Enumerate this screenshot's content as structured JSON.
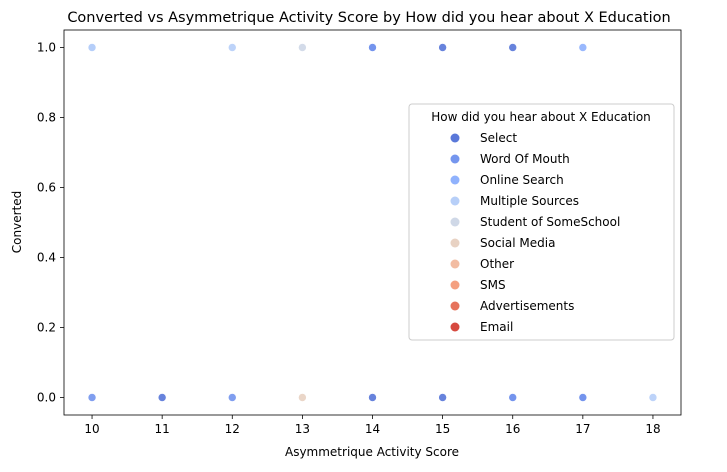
{
  "chart_data": {
    "type": "scatter",
    "title": "Converted vs Asymmetrique Activity Score by How did you hear about X Education",
    "xlabel": "Asymmetrique Activity Score",
    "ylabel": "Converted",
    "xlim": [
      9.6,
      18.4
    ],
    "ylim": [
      -0.05,
      1.05
    ],
    "xticks": [
      10,
      11,
      12,
      13,
      14,
      15,
      16,
      17,
      18
    ],
    "yticks": [
      0.0,
      0.2,
      0.4,
      0.6,
      0.8,
      1.0
    ],
    "ytick_labels": [
      "0.0",
      "0.2",
      "0.4",
      "0.6",
      "0.8",
      "1.0"
    ],
    "grid": false,
    "legend": {
      "title": "How did you hear about X Education",
      "placement": "center-right"
    },
    "series": [
      {
        "name": "Select",
        "color": "#5a78d9",
        "points": [
          [
            11,
            0
          ],
          [
            14,
            0
          ],
          [
            14,
            1
          ],
          [
            15,
            0
          ],
          [
            15,
            1
          ],
          [
            16,
            0
          ],
          [
            16,
            1
          ],
          [
            17,
            0
          ]
        ]
      },
      {
        "name": "Word Of Mouth",
        "color": "#7596ee",
        "points": [
          [
            10,
            0
          ],
          [
            12,
            0
          ],
          [
            14,
            1
          ],
          [
            16,
            0
          ],
          [
            17,
            0
          ]
        ]
      },
      {
        "name": "Online Search",
        "color": "#90b2fd",
        "points": [
          [
            10,
            1
          ],
          [
            17,
            1
          ]
        ]
      },
      {
        "name": "Multiple Sources",
        "color": "#b7cff8",
        "points": [
          [
            10,
            1
          ],
          [
            12,
            1
          ],
          [
            18,
            0
          ]
        ]
      },
      {
        "name": "Student of SomeSchool",
        "color": "#cfd8e7",
        "points": [
          [
            13,
            1
          ]
        ]
      },
      {
        "name": "Social Media",
        "color": "#e8d2c3",
        "points": [
          [
            13,
            0
          ]
        ]
      },
      {
        "name": "Other",
        "color": "#f2bca2",
        "points": []
      },
      {
        "name": "SMS",
        "color": "#f4a080",
        "points": []
      },
      {
        "name": "Advertisements",
        "color": "#e6735c",
        "points": []
      },
      {
        "name": "Email",
        "color": "#d64a40",
        "points": []
      }
    ]
  }
}
